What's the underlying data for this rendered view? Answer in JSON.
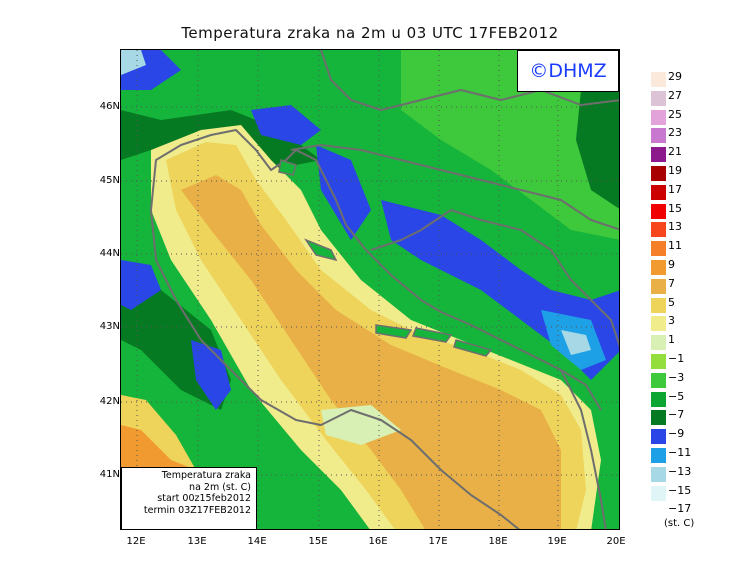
{
  "title": "Temperatura zraka na 2m u 03 UTC 17FEB2012",
  "logo": "©DHMZ",
  "info_box": {
    "line1": "Temperatura zraka",
    "line2": "na 2m (st. C)",
    "line3": "start 00z15feb2012",
    "line4": "termin 03Z17FEB2012"
  },
  "lat_labels": [
    "46N",
    "45N",
    "44N",
    "43N",
    "42N",
    "41N"
  ],
  "lon_labels": [
    "12E",
    "13E",
    "14E",
    "15E",
    "16E",
    "17E",
    "18E",
    "19E",
    "20E"
  ],
  "legend": {
    "unit": "(st. C)",
    "bins": [
      {
        "label": "29",
        "color": "#fbeadb"
      },
      {
        "label": "27",
        "color": "#dcc4d6"
      },
      {
        "label": "25",
        "color": "#e2a3da"
      },
      {
        "label": "23",
        "color": "#c878cf"
      },
      {
        "label": "21",
        "color": "#8d1a8d"
      },
      {
        "label": "19",
        "color": "#a80000"
      },
      {
        "label": "17",
        "color": "#cd0000"
      },
      {
        "label": "15",
        "color": "#f00000"
      },
      {
        "label": "13",
        "color": "#f7461e"
      },
      {
        "label": "11",
        "color": "#f57f28"
      },
      {
        "label": "9",
        "color": "#f09a30"
      },
      {
        "label": "7",
        "color": "#e8b046"
      },
      {
        "label": "5",
        "color": "#eed45a"
      },
      {
        "label": "3",
        "color": "#f0ec8c"
      },
      {
        "label": "1",
        "color": "#d8f0b4"
      },
      {
        "label": "−1",
        "color": "#93dd3c"
      },
      {
        "label": "−3",
        "color": "#3ec83c"
      },
      {
        "label": "−5",
        "color": "#0ca532"
      },
      {
        "label": "−7",
        "color": "#067a23"
      },
      {
        "label": "−9",
        "color": "#2a46e6"
      },
      {
        "label": "−11",
        "color": "#1ea0e6"
      },
      {
        "label": "−13",
        "color": "#a7d8e6"
      },
      {
        "label": "−15",
        "color": "#e0f6f6"
      },
      {
        "label": "−17",
        "color": "#ffffff"
      }
    ]
  },
  "colors": {
    "coast_and_border": "#6e6e6e",
    "grid": "#555555",
    "logo_text": "#1a3cff"
  }
}
